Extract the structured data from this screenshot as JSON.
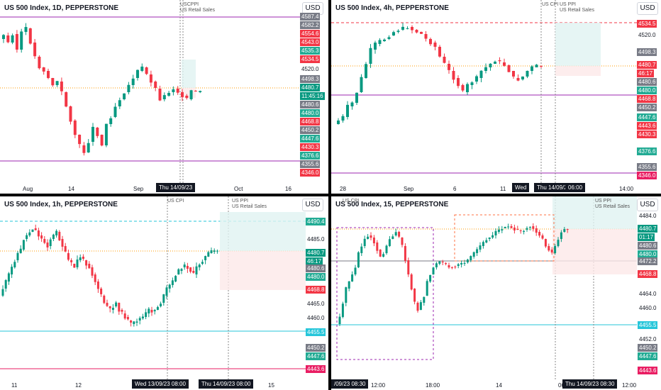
{
  "panes": [
    {
      "id": "p1",
      "title": "US 500 Index, 1D, PEPPERSTONE",
      "currency": "USD",
      "events": [
        "USCPPI",
        "US Retail Sales"
      ],
      "time_labels": [
        "Aug",
        "14",
        "Sep",
        "Oct",
        "16"
      ],
      "time_badges": [
        "Thu 14/09/23"
      ],
      "price_labels": [
        {
          "text": "4587.4",
          "color": "#787b86"
        },
        {
          "text": "4582.2",
          "color": "#787b86"
        },
        {
          "text": "4554.6",
          "color": "#f23645"
        },
        {
          "text": "4543.0",
          "color": "#f23645"
        },
        {
          "text": "4535.3",
          "color": "#22ab94"
        },
        {
          "text": "4534.5",
          "color": "#f23645"
        },
        {
          "text": "4520.0",
          "color": "#ffffff"
        },
        {
          "text": "4498.3",
          "color": "#787b86"
        },
        {
          "text": "4480.7",
          "color": "#089981"
        },
        {
          "text": "11:45:16",
          "color": "#089981"
        },
        {
          "text": "4480.6",
          "color": "#787b86"
        },
        {
          "text": "4480.0",
          "color": "#22ab94"
        },
        {
          "text": "4468.8",
          "color": "#f23645"
        },
        {
          "text": "4450.2",
          "color": "#787b86"
        },
        {
          "text": "4447.6",
          "color": "#22ab94"
        },
        {
          "text": "4430.3",
          "color": "#f23645"
        },
        {
          "text": "4376.6",
          "color": "#22ab94"
        },
        {
          "text": "4355.6",
          "color": "#787b86"
        },
        {
          "text": "4346.0",
          "color": "#f23645"
        }
      ]
    },
    {
      "id": "p2",
      "title": "US 500 Index, 4h, PEPPERSTONE",
      "currency": "USD",
      "events": [
        "US CPI",
        "US PPI",
        "US Retail Sales"
      ],
      "time_labels": [
        "28",
        "Sep",
        "6",
        "11",
        "14:00"
      ],
      "time_badges": [
        "Wed",
        "Thu 14/09/23",
        "06:00"
      ],
      "price_labels": [
        {
          "text": "4534.5",
          "color": "#f23645"
        },
        {
          "text": "4520.0",
          "color": "#ffffff"
        },
        {
          "text": "4498.3",
          "color": "#787b86"
        },
        {
          "text": "4480.7",
          "color": "#f23645"
        },
        {
          "text": "46:17",
          "color": "#f23645"
        },
        {
          "text": "4480.6",
          "color": "#787b86"
        },
        {
          "text": "4480.0",
          "color": "#22ab94"
        },
        {
          "text": "4468.8",
          "color": "#f23645"
        },
        {
          "text": "4450.2",
          "color": "#787b86"
        },
        {
          "text": "4447.6",
          "color": "#22ab94"
        },
        {
          "text": "4443.6",
          "color": "#f23645"
        },
        {
          "text": "4430.3",
          "color": "#f23645"
        },
        {
          "text": "4376.6",
          "color": "#22ab94"
        },
        {
          "text": "4355.6",
          "color": "#787b86"
        },
        {
          "text": "4346.0",
          "color": "#e91e63"
        }
      ]
    },
    {
      "id": "p3",
      "title": "US 500 Index, 1h, PEPPERSTONE",
      "currency": "USD",
      "events": [
        "US CPI",
        "US PPI",
        "US Retail Sales"
      ],
      "time_labels": [
        "11",
        "12",
        "15"
      ],
      "time_badges": [
        "Wed 13/09/23  08:00",
        "Thu 14/09/23  08:00"
      ],
      "price_labels": [
        {
          "text": "4490.4",
          "color": "#22ab94"
        },
        {
          "text": "4485.0",
          "color": "#ffffff"
        },
        {
          "text": "4480.7",
          "color": "#089981"
        },
        {
          "text": "46:17",
          "color": "#089981"
        },
        {
          "text": "4480.6",
          "color": "#787b86"
        },
        {
          "text": "4480.0",
          "color": "#22ab94"
        },
        {
          "text": "4468.8",
          "color": "#f23645"
        },
        {
          "text": "4465.0",
          "color": "#ffffff"
        },
        {
          "text": "4460.0",
          "color": "#ffffff"
        },
        {
          "text": "4455.5",
          "color": "#26c6da"
        },
        {
          "text": "4450.2",
          "color": "#787b86"
        },
        {
          "text": "4447.6",
          "color": "#22ab94"
        },
        {
          "text": "4443.6",
          "color": "#e91e63"
        }
      ]
    },
    {
      "id": "p4",
      "title": "US 500 Index, 15, PEPPERSTONE",
      "currency": "USD",
      "events": [
        "US CPI",
        "US PPI",
        "US Retail Sales"
      ],
      "time_labels": [
        "12:00",
        "18:00",
        "14",
        "06",
        "12:00"
      ],
      "time_badges": [
        "/09/23  08:30",
        "Thu 14/09/23  08:30"
      ],
      "price_labels": [
        {
          "text": "4484.0",
          "color": "#ffffff"
        },
        {
          "text": "4480.7",
          "color": "#089981"
        },
        {
          "text": "01:17",
          "color": "#089981"
        },
        {
          "text": "4480.6",
          "color": "#787b86"
        },
        {
          "text": "4480.0",
          "color": "#22ab94"
        },
        {
          "text": "4472.2",
          "color": "#787b86"
        },
        {
          "text": "4468.8",
          "color": "#f23645"
        },
        {
          "text": "4464.0",
          "color": "#ffffff"
        },
        {
          "text": "4460.0",
          "color": "#ffffff"
        },
        {
          "text": "4455.5",
          "color": "#26c6da"
        },
        {
          "text": "4452.0",
          "color": "#ffffff"
        },
        {
          "text": "4450.2",
          "color": "#787b86"
        },
        {
          "text": "4447.6",
          "color": "#22ab94"
        },
        {
          "text": "4443.6",
          "color": "#e91e63"
        }
      ]
    }
  ],
  "colors": {
    "up": "#089981",
    "down": "#f23645",
    "divider": "#000000",
    "axis_text": "#131722"
  }
}
